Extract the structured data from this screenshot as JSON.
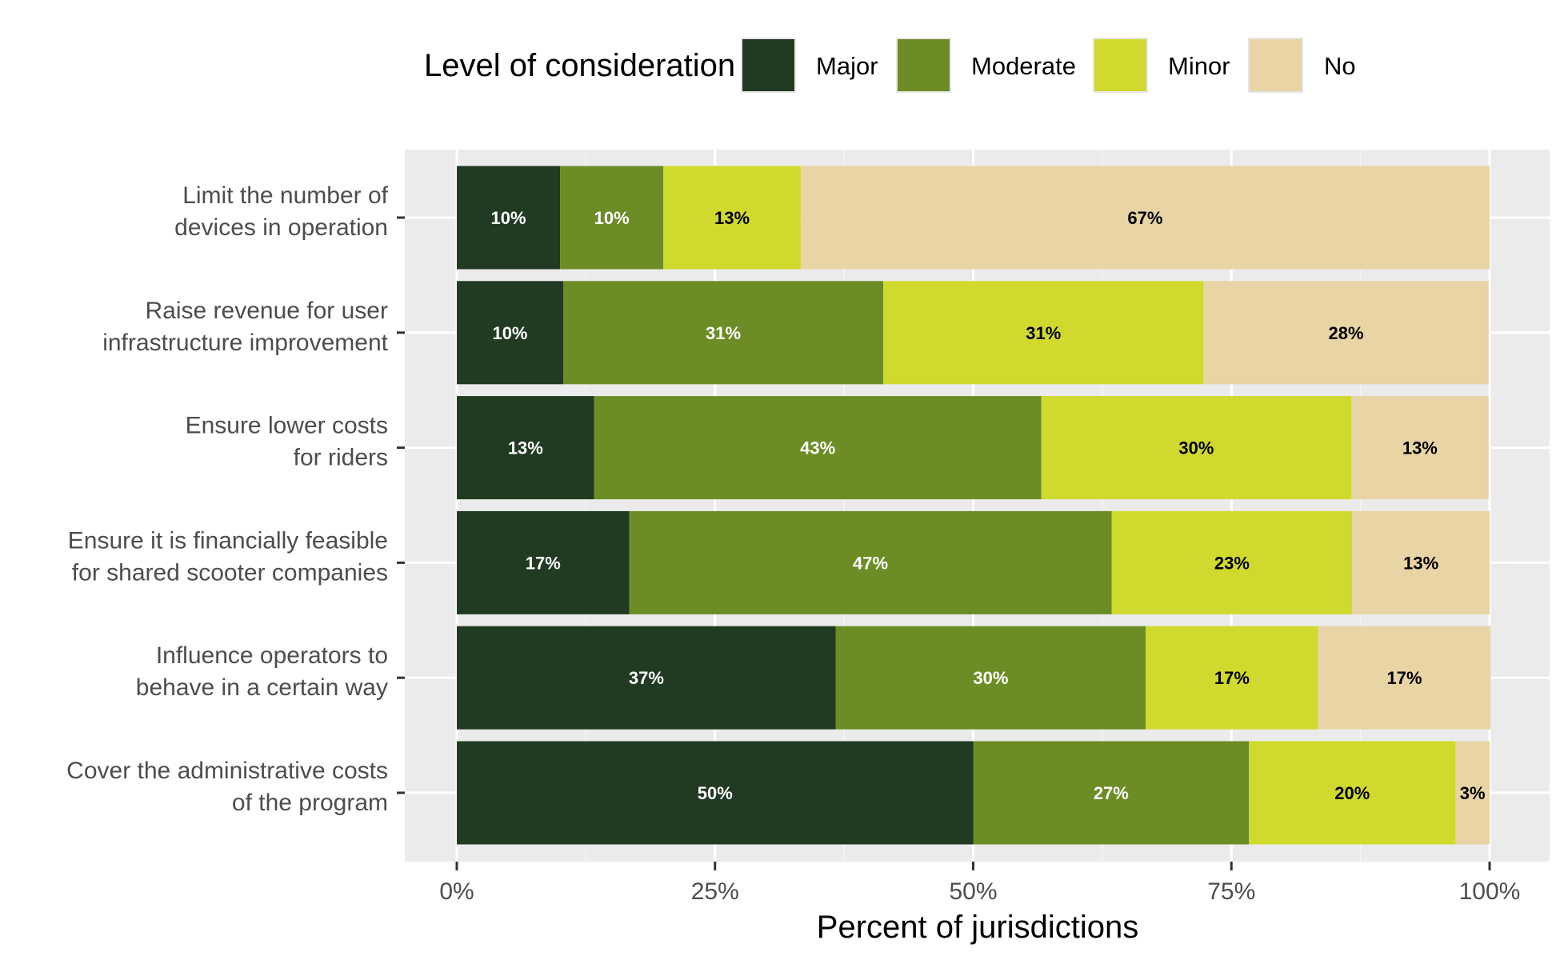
{
  "chart_data": {
    "type": "bar",
    "orientation": "horizontal",
    "stacked": true,
    "xlabel": "Percent of jurisdictions",
    "ylabel": "",
    "xlim": [
      0,
      100
    ],
    "x_ticks": [
      "0%",
      "25%",
      "50%",
      "75%",
      "100%"
    ],
    "x_tick_values": [
      0,
      25,
      50,
      75,
      100
    ],
    "grid": true,
    "legend": {
      "title": "Level of consideration",
      "placement": "top"
    },
    "categories": [
      [
        "Limit the number of",
        "devices in operation"
      ],
      [
        "Raise revenue for user",
        "infrastructure improvement"
      ],
      [
        "Ensure lower costs",
        "for riders"
      ],
      [
        "Ensure it is financially feasible",
        "for shared scooter companies"
      ],
      [
        "Influence operators to",
        "behave in a certain way"
      ],
      [
        "Cover the administrative costs",
        "of the program"
      ]
    ],
    "series": [
      {
        "name": "Major",
        "color": "#213a22",
        "label_color": "#ffffff",
        "values": [
          10,
          10.3,
          13.3,
          16.7,
          36.7,
          50
        ],
        "labels": [
          "10%",
          "10%",
          "13%",
          "17%",
          "37%",
          "50%"
        ]
      },
      {
        "name": "Moderate",
        "color": "#6c8c25",
        "label_color": "#ffffff",
        "values": [
          10,
          31.0,
          43.3,
          46.7,
          30,
          26.7
        ],
        "labels": [
          "10%",
          "31%",
          "43%",
          "47%",
          "30%",
          "27%"
        ]
      },
      {
        "name": "Minor",
        "color": "#d0d92e",
        "label_color": "#000000",
        "values": [
          13.3,
          31.0,
          30,
          23.3,
          16.7,
          20
        ],
        "labels": [
          "13%",
          "31%",
          "30%",
          "23%",
          "17%",
          "20%"
        ]
      },
      {
        "name": "No",
        "color": "#e8d4a4",
        "label_color": "#000000",
        "values": [
          66.7,
          27.6,
          13.3,
          13.3,
          16.7,
          3.3
        ],
        "labels": [
          "67%",
          "28%",
          "13%",
          "13%",
          "17%",
          "3%"
        ]
      }
    ]
  }
}
